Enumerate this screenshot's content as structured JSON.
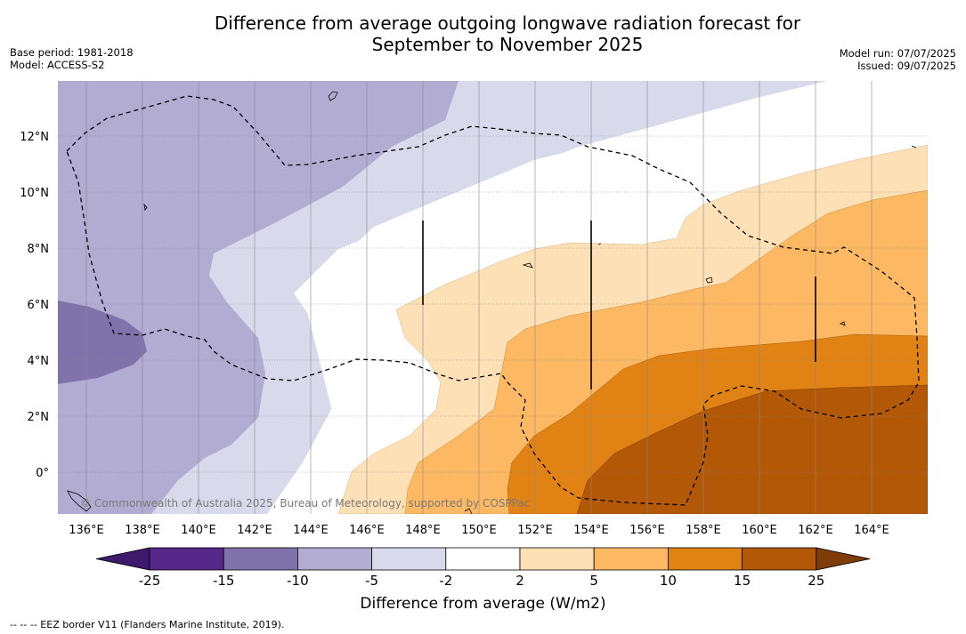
{
  "header": {
    "title_line1": "Difference from average outgoing longwave radiation forecast for",
    "title_line2": "September to November 2025",
    "base_period": "Base period: 1981-2018",
    "model": "Model: ACCESS-S2",
    "model_run": "Model run: 07/07/2025",
    "issued": "Issued: 09/07/2025"
  },
  "map": {
    "lon_labels": [
      "136°E",
      "138°E",
      "140°E",
      "142°E",
      "144°E",
      "146°E",
      "148°E",
      "150°E",
      "152°E",
      "154°E",
      "156°E",
      "158°E",
      "160°E",
      "162°E",
      "164°E"
    ],
    "lat_labels": [
      "12°N",
      "10°N",
      "8°N",
      "6°N",
      "4°N",
      "2°N",
      "0°"
    ],
    "copyright": "© Commonwealth of Australia 2025, Bureau of Meteorology, supported by COSPPac"
  },
  "colorbar": {
    "ticks": [
      "-25",
      "-15",
      "-10",
      "-5",
      "-2",
      "2",
      "5",
      "10",
      "15",
      "25"
    ],
    "colors": [
      "#3d1a6b",
      "#542788",
      "#8073ac",
      "#b2abd2",
      "#d8daeb",
      "#ffffff",
      "#fee0b6",
      "#fdb863",
      "#e08214",
      "#b35806",
      "#7f3b08"
    ],
    "label": "Difference from average (W/m2)"
  },
  "footnote": "--  --  -- EEZ border V11 (Flanders Marine Institute, 2019)."
}
